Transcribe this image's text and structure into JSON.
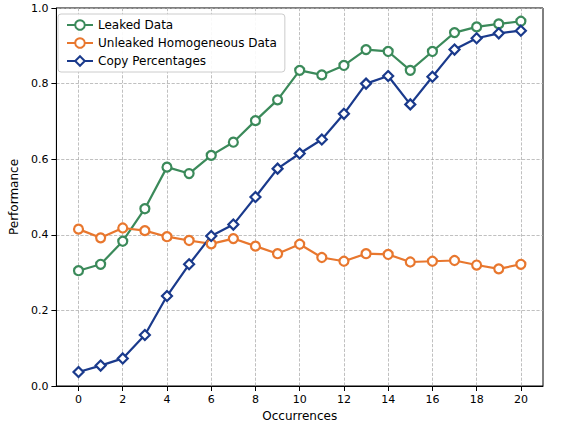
{
  "chart_data": {
    "type": "line",
    "x_label": "Occurrences",
    "y_label": "Performance",
    "x": [
      0,
      1,
      2,
      3,
      4,
      5,
      6,
      7,
      8,
      9,
      10,
      11,
      12,
      13,
      14,
      15,
      16,
      17,
      18,
      19,
      20
    ],
    "series": [
      {
        "name": "Leaked Data",
        "color": "#3b8a5a",
        "marker": "circle",
        "values": [
          0.305,
          0.322,
          0.383,
          0.469,
          0.579,
          0.562,
          0.61,
          0.645,
          0.702,
          0.757,
          0.835,
          0.823,
          0.848,
          0.89,
          0.885,
          0.835,
          0.885,
          0.935,
          0.95,
          0.958,
          0.965
        ]
      },
      {
        "name": "Unleaked Homogeneous Data",
        "color": "#e8772e",
        "marker": "circle",
        "values": [
          0.415,
          0.392,
          0.418,
          0.411,
          0.395,
          0.385,
          0.376,
          0.39,
          0.37,
          0.35,
          0.375,
          0.34,
          0.33,
          0.35,
          0.348,
          0.328,
          0.33,
          0.332,
          0.32,
          0.31,
          0.322
        ]
      },
      {
        "name": "Copy Percentages",
        "color": "#1a3a8c",
        "marker": "diamond",
        "values": [
          0.037,
          0.054,
          0.073,
          0.135,
          0.238,
          0.322,
          0.397,
          0.427,
          0.5,
          0.575,
          0.615,
          0.652,
          0.72,
          0.8,
          0.82,
          0.745,
          0.818,
          0.89,
          0.92,
          0.933,
          0.94
        ]
      }
    ],
    "xlim": [
      -1,
      21
    ],
    "xticks": [
      0,
      2,
      4,
      6,
      8,
      10,
      12,
      14,
      16,
      18,
      20
    ],
    "ylim": [
      0,
      1
    ],
    "yticks": [
      {
        "value": 0,
        "label": "0.0"
      },
      0.2,
      0.4,
      0.6,
      0.8,
      {
        "value": 1,
        "label": "1.0"
      }
    ],
    "grid": true,
    "legend": "upper left"
  }
}
